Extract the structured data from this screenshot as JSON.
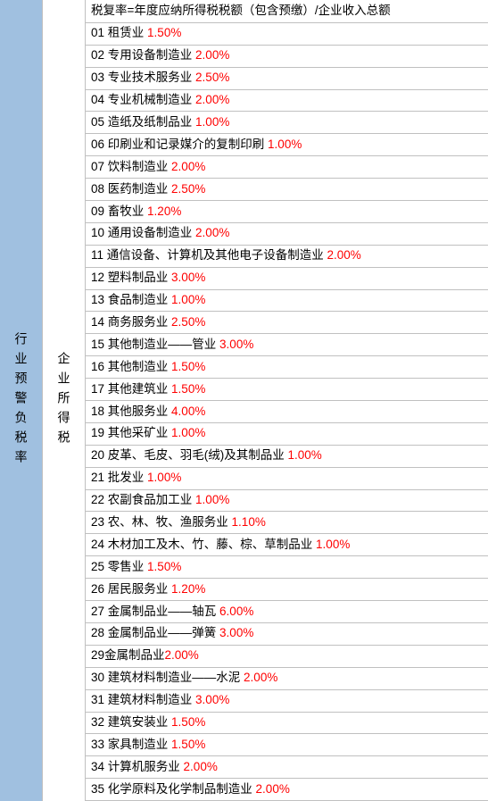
{
  "sidebar_left": "行业预警负税率",
  "sidebar_mid": "企业所得税",
  "header": "税复率=年度应纳所得税税额（包含预缴）/企业收入总额",
  "colors": {
    "left_bg": "#a0c0e0",
    "rate_color": "#ff0000",
    "text_color": "#000000",
    "border_color": "#c0c0c0",
    "bg_color": "#ffffff"
  },
  "font": {
    "family": "Microsoft YaHei",
    "size": 14
  },
  "rows": [
    {
      "num": "01",
      "name": "租赁业",
      "rate": "1.50%"
    },
    {
      "num": "02",
      "name": "专用设备制造业",
      "rate": "2.00%"
    },
    {
      "num": "03",
      "name": "专业技术服务业",
      "rate": "2.50%"
    },
    {
      "num": "04",
      "name": "专业机械制造业",
      "rate": "2.00%"
    },
    {
      "num": "05",
      "name": "造纸及纸制品业",
      "rate": "1.00%"
    },
    {
      "num": "06",
      "name": "印刷业和记录媒介的复制印刷",
      "rate": "1.00%"
    },
    {
      "num": "07",
      "name": "饮料制造业",
      "rate": "2.00%"
    },
    {
      "num": "08",
      "name": "医药制造业",
      "rate": "2.50%"
    },
    {
      "num": "09",
      "name": "畜牧业",
      "rate": "1.20%"
    },
    {
      "num": "10",
      "name": "通用设备制造业",
      "rate": "2.00%"
    },
    {
      "num": "11",
      "name": "通信设备、计算机及其他电子设备制造业",
      "rate": "2.00%"
    },
    {
      "num": "12",
      "name": "塑料制品业",
      "rate": "3.00%"
    },
    {
      "num": "13",
      "name": "食品制造业",
      "rate": "1.00%"
    },
    {
      "num": "14",
      "name": "商务服务业",
      "rate": "2.50%"
    },
    {
      "num": "15",
      "name": "其他制造业——管业",
      "rate": "3.00%"
    },
    {
      "num": "16",
      "name": "其他制造业",
      "rate": "1.50%"
    },
    {
      "num": "17",
      "name": "其他建筑业",
      "rate": "1.50%"
    },
    {
      "num": "18",
      "name": "其他服务业",
      "rate": "4.00%"
    },
    {
      "num": "19",
      "name": "其他采矿业",
      "rate": "1.00%"
    },
    {
      "num": "20",
      "name": "皮革、毛皮、羽毛(绒)及其制品业",
      "rate": "1.00%"
    },
    {
      "num": "21",
      "name": "批发业",
      "rate": "1.00%"
    },
    {
      "num": "22",
      "name": "农副食品加工业",
      "rate": "1.00%"
    },
    {
      "num": "23",
      "name": "农、林、牧、渔服务业",
      "rate": "1.10%"
    },
    {
      "num": "24",
      "name": "木材加工及木、竹、藤、棕、草制品业",
      "rate": "1.00%"
    },
    {
      "num": "25",
      "name": "零售业",
      "rate": "1.50%"
    },
    {
      "num": "26",
      "name": "居民服务业",
      "rate": "1.20%"
    },
    {
      "num": "27",
      "name": "金属制品业——轴瓦",
      "rate": "6.00%"
    },
    {
      "num": "28",
      "name": "金属制品业——弹簧",
      "rate": "3.00%"
    },
    {
      "num": "29",
      "name": "金属制品业",
      "rate": "2.00%",
      "nospace": true
    },
    {
      "num": "30",
      "name": "建筑材料制造业——水泥",
      "rate": "2.00%"
    },
    {
      "num": "31",
      "name": "建筑材料制造业",
      "rate": "3.00%"
    },
    {
      "num": "32",
      "name": "建筑安装业",
      "rate": "1.50%"
    },
    {
      "num": "33",
      "name": "家具制造业",
      "rate": "1.50%"
    },
    {
      "num": "34",
      "name": "计算机服务业",
      "rate": "2.00%"
    },
    {
      "num": "35",
      "name": "化学原料及化学制品制造业",
      "rate": "2.00%"
    }
  ]
}
